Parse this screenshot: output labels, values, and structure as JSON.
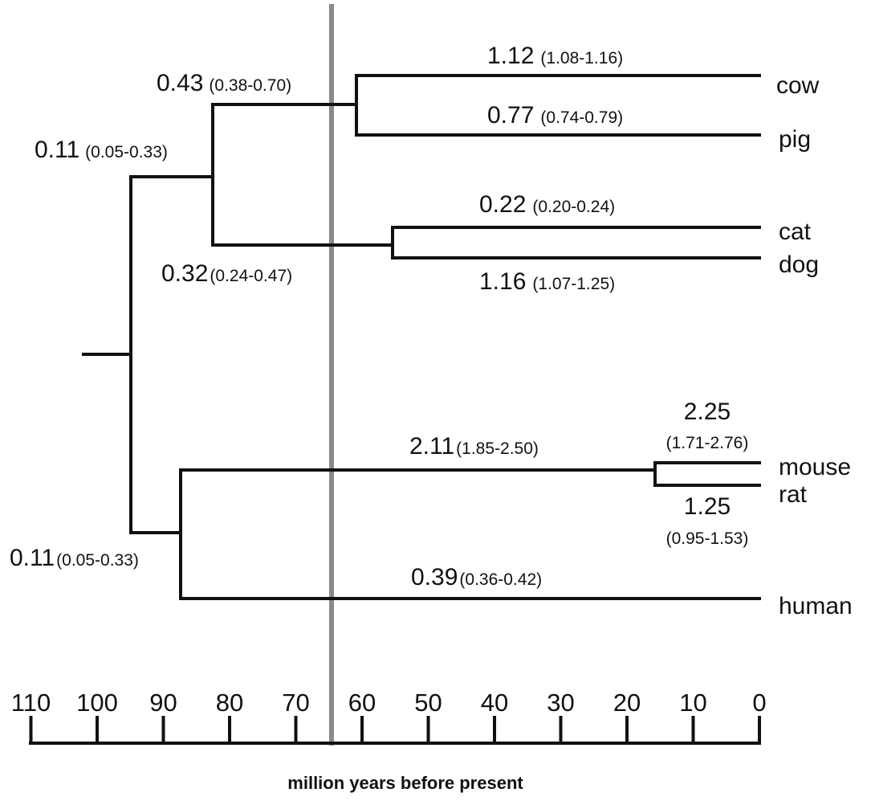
{
  "taxa": [
    "cow",
    "pig",
    "cat",
    "dog",
    "mouse",
    "rat",
    "human"
  ],
  "branch_labels": {
    "cow": {
      "rate": "1.12",
      "ci": "(1.08-1.16)"
    },
    "pig": {
      "rate": "0.77",
      "ci": "(0.74-0.79)"
    },
    "cow_pig_stem": {
      "rate": "0.43",
      "ci": "(0.38-0.70)"
    },
    "laurasiatheria_stem": {
      "rate": "0.11",
      "ci": "(0.05-0.33)"
    },
    "cat": {
      "rate": "0.22",
      "ci": "(0.20-0.24)"
    },
    "dog": {
      "rate": "1.16",
      "ci": "(1.07-1.25)"
    },
    "cat_dog_stem": {
      "rate": "0.32",
      "ci": "(0.24-0.47)"
    },
    "mouse": {
      "rate": "2.25",
      "ci": "(1.71-2.76)"
    },
    "rat": {
      "rate": "1.25",
      "ci": "(0.95-1.53)"
    },
    "rodent_stem": {
      "rate": "2.11",
      "ci": "(1.85-2.50)"
    },
    "human": {
      "rate": "0.39",
      "ci": "(0.36-0.42)"
    },
    "euarchontoglires_stem": {
      "rate": "0.11",
      "ci": "(0.05-0.33)"
    }
  },
  "node_ages_mya": {
    "root": 100,
    "laurasiatheria": 84,
    "cow_pig": 62,
    "cat_dog": 56.5,
    "euarchontoglires": 89,
    "mouse_rat": 16
  },
  "kt_boundary_mya": 65.5,
  "axis": {
    "ticks": [
      "110",
      "100",
      "90",
      "80",
      "70",
      "60",
      "50",
      "40",
      "30",
      "20",
      "10",
      "0"
    ],
    "title": "million years before present"
  }
}
